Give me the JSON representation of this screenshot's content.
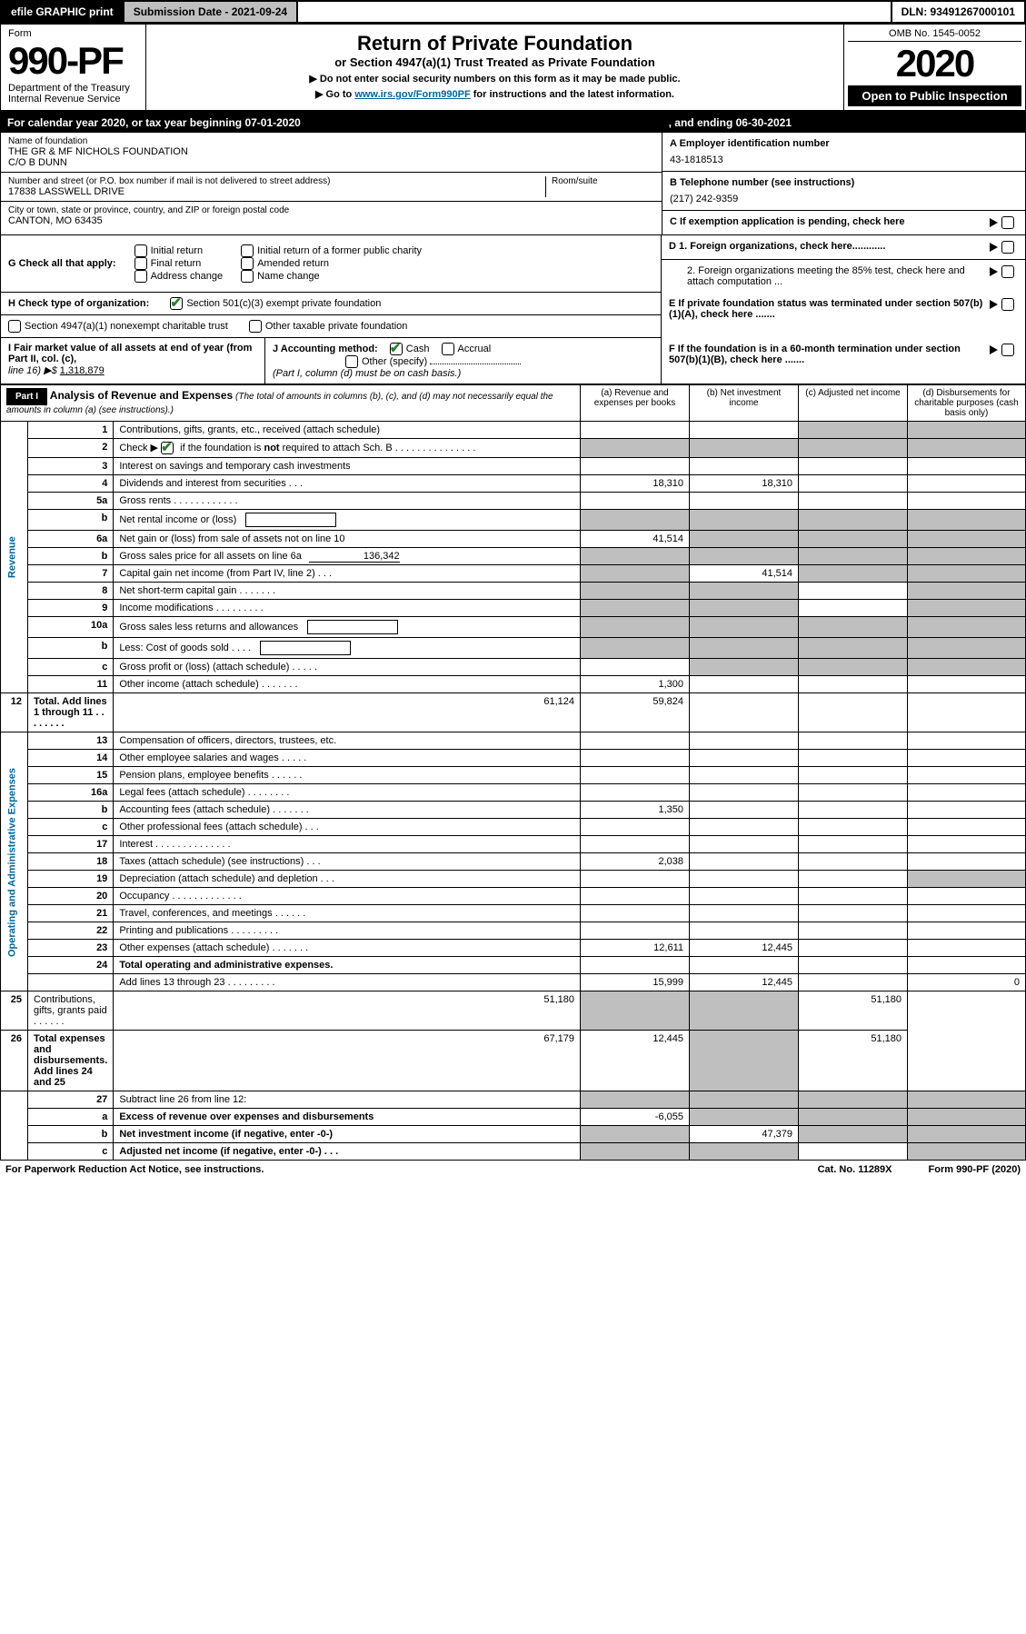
{
  "topbar": {
    "efile": "efile GRAPHIC print",
    "subdate_lbl": "Submission Date - 2021-09-24",
    "dln": "DLN: 93491267000101"
  },
  "form": {
    "label": "Form",
    "number": "990-PF",
    "dept": "Department of the Treasury",
    "irs": "Internal Revenue Service"
  },
  "title": {
    "main": "Return of Private Foundation",
    "sub": "or Section 4947(a)(1) Trust Treated as Private Foundation",
    "l1": "▶ Do not enter social security numbers on this form as it may be made public.",
    "l2_pre": "▶ Go to ",
    "l2_link": "www.irs.gov/Form990PF",
    "l2_post": " for instructions and the latest information."
  },
  "yearbox": {
    "omb": "OMB No. 1545-0052",
    "year": "2020",
    "open": "Open to Public Inspection"
  },
  "calyear": {
    "left": "For calendar year 2020, or tax year beginning 07-01-2020",
    "right": ", and ending 06-30-2021"
  },
  "id": {
    "name_lbl": "Name of foundation",
    "name": "THE GR & MF NICHOLS FOUNDATION",
    "co": "C/O B DUNN",
    "addr_lbl": "Number and street (or P.O. box number if mail is not delivered to street address)",
    "room_lbl": "Room/suite",
    "addr": "17838 LASSWELL DRIVE",
    "city_lbl": "City or town, state or province, country, and ZIP or foreign postal code",
    "city": "CANTON, MO  63435",
    "a_lbl": "A Employer identification number",
    "a": "43-1818513",
    "b_lbl": "B Telephone number (see instructions)",
    "b": "(217) 242-9359",
    "c_lbl": "C If exemption application is pending, check here",
    "d1": "D 1. Foreign organizations, check here............",
    "d2": "2. Foreign organizations meeting the 85% test, check here and attach computation ...",
    "e": "E  If private foundation status was terminated under section 507(b)(1)(A), check here .......",
    "f": "F  If the foundation is in a 60-month termination under section 507(b)(1)(B), check here ......."
  },
  "g": {
    "lbl": "G Check all that apply:",
    "o": [
      "Initial return",
      "Final return",
      "Address change",
      "Initial return of a former public charity",
      "Amended return",
      "Name change"
    ]
  },
  "h": {
    "lbl": "H Check type of organization:",
    "o1": "Section 501(c)(3) exempt private foundation",
    "o2": "Section 4947(a)(1) nonexempt charitable trust",
    "o3": "Other taxable private foundation"
  },
  "i": {
    "lbl": "I Fair market value of all assets at end of year (from Part II, col. (c),",
    "line": "line 16) ▶$ ",
    "val": "1,318,879"
  },
  "j": {
    "lbl": "J Accounting method:",
    "o1": "Cash",
    "o2": "Accrual",
    "o3": "Other (specify)",
    "note": "(Part I, column (d) must be on cash basis.)"
  },
  "part1": {
    "hdr": "Part I",
    "title": "Analysis of Revenue and Expenses",
    "note": "(The total of amounts in columns (b), (c), and (d) may not necessarily equal the amounts in column (a) (see instructions).)",
    "cols": [
      "(a) Revenue and expenses per books",
      "(b) Net investment income",
      "(c) Adjusted net income",
      "(d) Disbursements for charitable purposes (cash basis only)"
    ]
  },
  "sections": {
    "rev": "Revenue",
    "exp": "Operating and Administrative Expenses"
  },
  "rows": [
    {
      "n": "1",
      "t": "Contributions, gifts, grants, etc., received (attach schedule)",
      "g": [
        3,
        4
      ]
    },
    {
      "n": "2",
      "t_pre": "Check ▶ ",
      "t_post": " if the foundation is not required to attach Sch. B   .   .   .   .   .   .   .   .   .   .   .   .   .   .   .",
      "chk": true,
      "not_bold": true,
      "g": [
        1,
        2,
        3,
        4
      ]
    },
    {
      "n": "3",
      "t": "Interest on savings and temporary cash investments"
    },
    {
      "n": "4",
      "t": "Dividends and interest from securities    .   .   .",
      "a": "18,310",
      "b": "18,310"
    },
    {
      "n": "5a",
      "t": "Gross rents    .   .   .   .   .   .   .   .   .   .   .   ."
    },
    {
      "n": "b",
      "t": "Net rental income or (loss)",
      "inline": true,
      "g": [
        1,
        2,
        3,
        4
      ]
    },
    {
      "n": "6a",
      "t": "Net gain or (loss) from sale of assets not on line 10",
      "a": "41,514",
      "g": [
        2,
        3,
        4
      ]
    },
    {
      "n": "b",
      "t_pre": "Gross sales price for all assets on line 6a",
      "val": "136,342",
      "g": [
        1,
        2,
        3,
        4
      ]
    },
    {
      "n": "7",
      "t": "Capital gain net income (from Part IV, line 2)   .   .   .",
      "b": "41,514",
      "g": [
        1,
        3,
        4
      ]
    },
    {
      "n": "8",
      "t": "Net short-term capital gain   .   .   .   .   .   .   .",
      "g": [
        1,
        2,
        4
      ]
    },
    {
      "n": "9",
      "t": "Income modifications  .   .   .   .   .   .   .   .   .",
      "g": [
        1,
        2,
        4
      ]
    },
    {
      "n": "10a",
      "t": "Gross sales less returns and allowances",
      "inline": true,
      "g": [
        1,
        2,
        3,
        4
      ]
    },
    {
      "n": "b",
      "t": "Less: Cost of goods sold    .   .   .   .",
      "inline": true,
      "g": [
        1,
        2,
        3,
        4
      ]
    },
    {
      "n": "c",
      "t": "Gross profit or (loss) (attach schedule)    .   .   .   .   .",
      "g": [
        2,
        3,
        4
      ]
    },
    {
      "n": "11",
      "t": "Other income (attach schedule)    .   .   .   .   .   .   .",
      "a": "1,300"
    },
    {
      "n": "12",
      "t": "Total. Add lines 1 through 11   .   .   .   .   .   .   .   .",
      "bold": true,
      "a": "61,124",
      "b": "59,824"
    },
    {
      "sec": "exp"
    },
    {
      "n": "13",
      "t": "Compensation of officers, directors, trustees, etc."
    },
    {
      "n": "14",
      "t": "Other employee salaries and wages   .   .   .   .   ."
    },
    {
      "n": "15",
      "t": "Pension plans, employee benefits  .   .   .   .   .   ."
    },
    {
      "n": "16a",
      "t": "Legal fees (attach schedule)  .   .   .   .   .   .   .   ."
    },
    {
      "n": "b",
      "t": "Accounting fees (attach schedule)  .   .   .   .   .   .   .",
      "a": "1,350"
    },
    {
      "n": "c",
      "t": "Other professional fees (attach schedule)    .   .   ."
    },
    {
      "n": "17",
      "t": "Interest  .   .   .   .   .   .   .   .   .   .   .   .   .   ."
    },
    {
      "n": "18",
      "t": "Taxes (attach schedule) (see instructions)    .   .   .",
      "a": "2,038"
    },
    {
      "n": "19",
      "t": "Depreciation (attach schedule) and depletion   .   .   .",
      "g": [
        4
      ]
    },
    {
      "n": "20",
      "t": "Occupancy  .   .   .   .   .   .   .   .   .   .   .   .   ."
    },
    {
      "n": "21",
      "t": "Travel, conferences, and meetings  .   .   .   .   .   ."
    },
    {
      "n": "22",
      "t": "Printing and publications  .   .   .   .   .   .   .   .   ."
    },
    {
      "n": "23",
      "t": "Other expenses (attach schedule)  .   .   .   .   .   .   .",
      "a": "12,611",
      "b": "12,445"
    },
    {
      "n": "24",
      "t": "Total operating and administrative expenses.",
      "bold": true,
      "noamt": true
    },
    {
      "n": "",
      "t": "Add lines 13 through 23   .   .   .   .   .   .   .   .   .",
      "a": "15,999",
      "b": "12,445",
      "d": "0"
    },
    {
      "n": "25",
      "t": "Contributions, gifts, grants paid    .   .   .   .   .   .",
      "a": "51,180",
      "d": "51,180",
      "g": [
        2,
        3
      ]
    },
    {
      "n": "26",
      "t": "Total expenses and disbursements. Add lines 24 and 25",
      "bold": true,
      "a": "67,179",
      "b": "12,445",
      "d": "51,180",
      "g": [
        3
      ]
    },
    {
      "sec": "end"
    },
    {
      "n": "27",
      "t": "Subtract line 26 from line 12:",
      "g": [
        1,
        2,
        3,
        4
      ]
    },
    {
      "n": "a",
      "t": "Excess of revenue over expenses and disbursements",
      "bold": true,
      "a": "-6,055",
      "g": [
        2,
        3,
        4
      ]
    },
    {
      "n": "b",
      "t": "Net investment income (if negative, enter -0-)",
      "bold": true,
      "b": "47,379",
      "g": [
        1,
        3,
        4
      ]
    },
    {
      "n": "c",
      "t": "Adjusted net income (if negative, enter -0-)   .   .   .",
      "bold": true,
      "g": [
        1,
        2,
        4
      ]
    }
  ],
  "footer": {
    "l": "For Paperwork Reduction Act Notice, see instructions.",
    "m": "Cat. No. 11289X",
    "r": "Form 990-PF (2020)"
  }
}
